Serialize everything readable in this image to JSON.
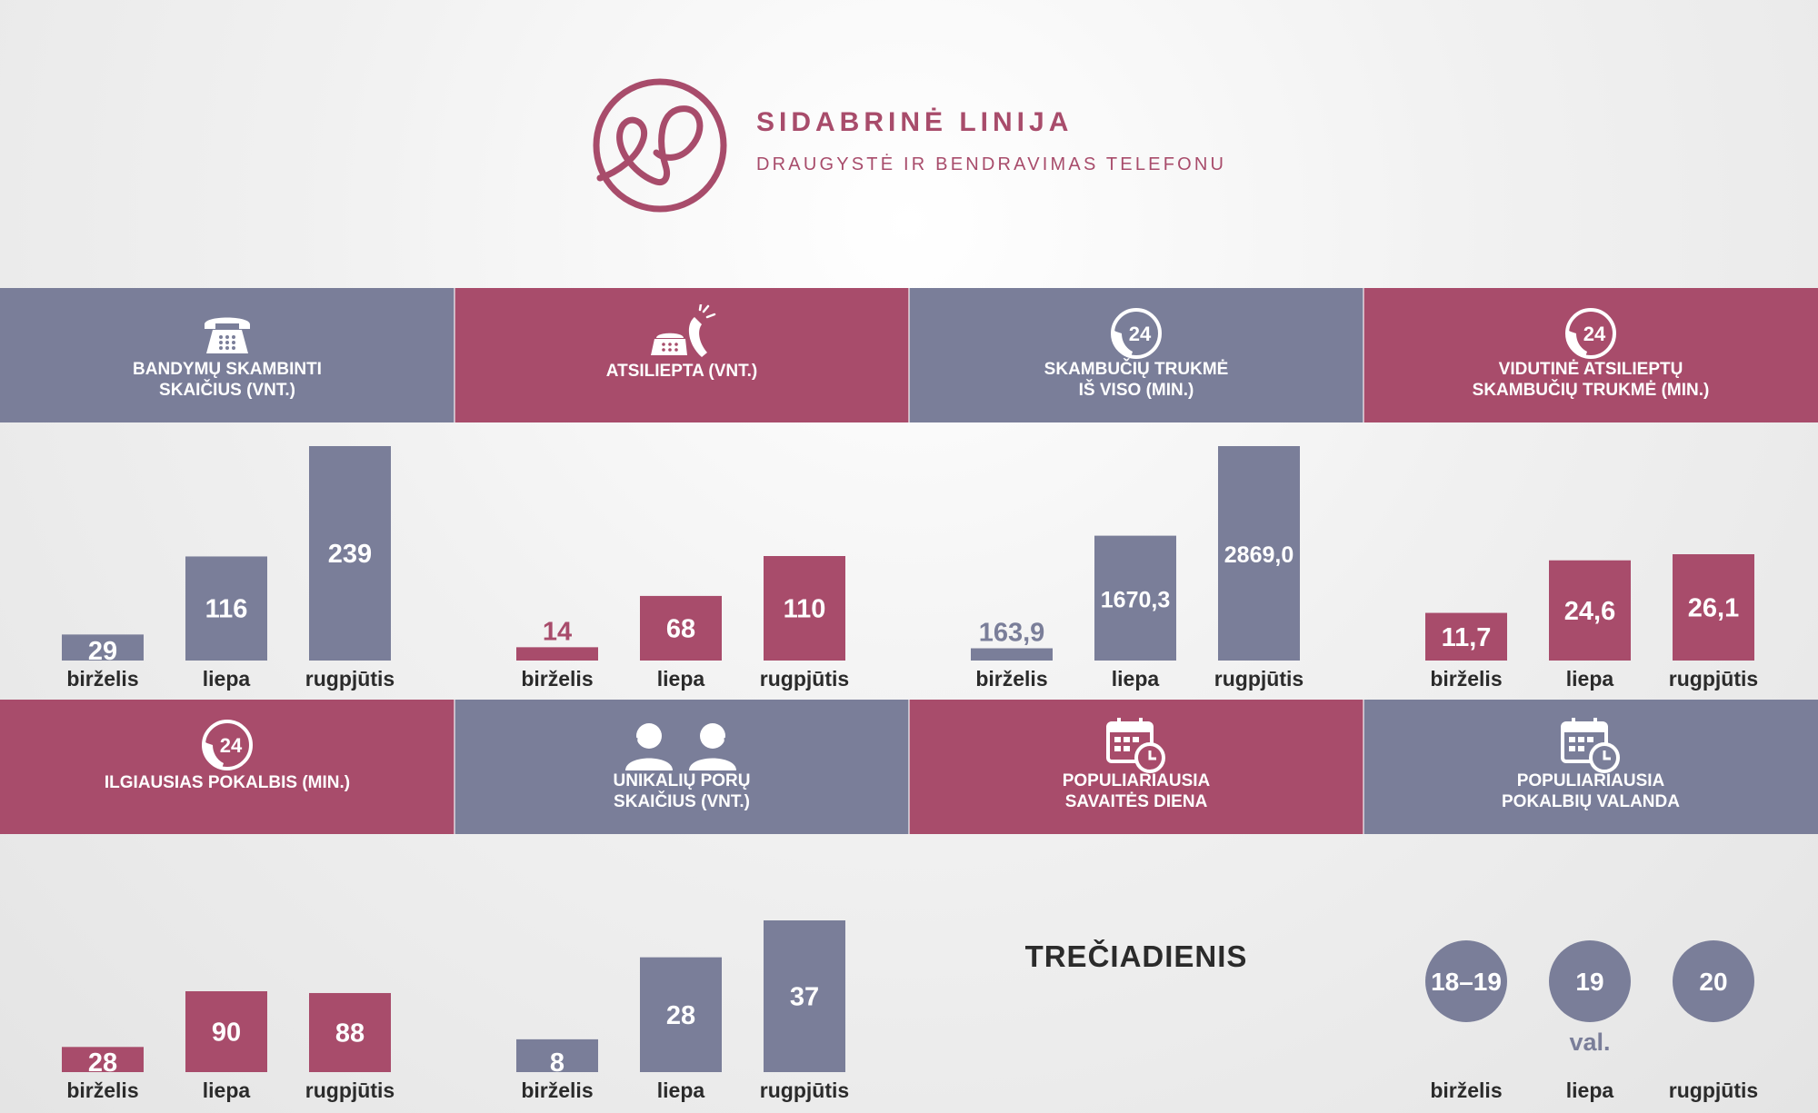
{
  "brand": {
    "title": "SIDABRINĖ LINIJA",
    "subtitle": "DRAUGYSTĖ IR BENDRAVIMAS TELEFONU",
    "logo_icon": "heart-loop-logo-icon"
  },
  "colors": {
    "slate": "#7a7e99",
    "rose": "#a84c6b",
    "text": "#2b2b2b",
    "white": "#ffffff"
  },
  "headers_row1": [
    {
      "title": "BANDYMŲ SKAMBINTI\nSKAIČIUS (VNT.)",
      "color": "slate",
      "icon": "rotary-phone-icon"
    },
    {
      "title": "ATSILIEPTA (VNT.)",
      "color": "rose",
      "icon": "ringing-phone-icon"
    },
    {
      "title": "SKAMBUČIŲ TRUKMĖ\nIŠ VISO (MIN.)",
      "color": "slate",
      "icon": "phone-24-icon"
    },
    {
      "title": "VIDUTINĖ ATSILIEPTŲ\nSKAMBUČIŲ TRUKMĖ (MIN.)",
      "color": "rose",
      "icon": "phone-24-icon"
    }
  ],
  "headers_row2": [
    {
      "title": "ILGIAUSIAS POKALBIS (MIN.)",
      "color": "rose",
      "icon": "phone-24-icon"
    },
    {
      "title": "UNIKALIŲ PORŲ\nSKAIČIUS (VNT.)",
      "color": "slate",
      "icon": "two-callers-icon"
    },
    {
      "title": "POPULIARIAUSIA\nSAVAITĖS DIENA",
      "color": "rose",
      "icon": "calendar-clock-icon"
    },
    {
      "title": "POPULIARIAUSIA\nPOKALBIŲ VALANDA",
      "color": "slate",
      "icon": "calendar-clock-icon"
    }
  ],
  "weekday_value": "TREČIADIENIS",
  "chart_data": [
    {
      "type": "bar",
      "color": "slate",
      "categories": [
        "birželis",
        "liepa",
        "rugpjūtis"
      ],
      "values": [
        29,
        116,
        239
      ],
      "labels": [
        "29",
        "116",
        "239"
      ]
    },
    {
      "type": "bar",
      "color": "rose",
      "categories": [
        "birželis",
        "liepa",
        "rugpjūtis"
      ],
      "values": [
        14,
        68,
        110
      ],
      "labels": [
        "14",
        "68",
        "110"
      ]
    },
    {
      "type": "bar",
      "color": "slate",
      "categories": [
        "birželis",
        "liepa",
        "rugpjūtis"
      ],
      "values": [
        163.9,
        1670.3,
        2869.0
      ],
      "labels": [
        "163,9",
        "1670,3",
        "2869,0"
      ]
    },
    {
      "type": "bar",
      "color": "rose",
      "categories": [
        "birželis",
        "liepa",
        "rugpjūtis"
      ],
      "values": [
        11.7,
        24.6,
        26.1
      ],
      "labels": [
        "11,7",
        "24,6",
        "26,1"
      ]
    },
    {
      "type": "bar",
      "color": "rose",
      "categories": [
        "birželis",
        "liepa",
        "rugpjūtis"
      ],
      "values": [
        28,
        90,
        88
      ],
      "labels": [
        "28",
        "90",
        "88"
      ]
    },
    {
      "type": "bar",
      "color": "slate",
      "categories": [
        "birželis",
        "liepa",
        "rugpjūtis"
      ],
      "values": [
        8,
        28,
        37
      ],
      "labels": [
        "8",
        "28",
        "37"
      ]
    },
    {
      "type": "table",
      "color": "slate",
      "categories": [
        "birželis",
        "liepa",
        "rugpjūtis"
      ],
      "values": [
        "18–19",
        "19",
        "20"
      ],
      "unit": "val."
    }
  ]
}
